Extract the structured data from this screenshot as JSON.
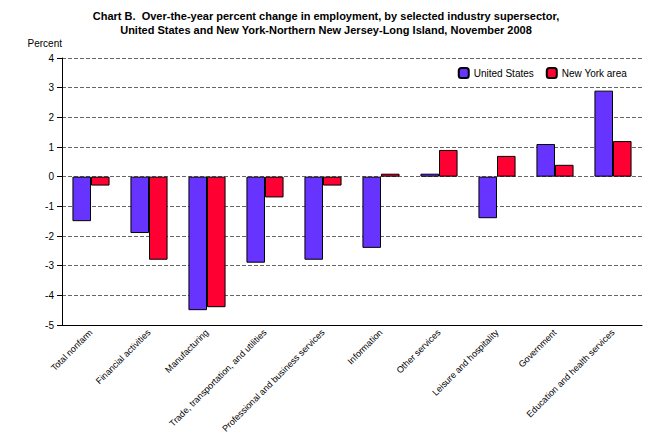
{
  "chart_data": {
    "type": "bar",
    "title": "Chart B.  Over-the-year percent change in employment, by selected industry supersector,\nUnited States and New York-Northern New Jersey-Long Island, November 2008",
    "y_label": "Percent",
    "categories": [
      "Total nonfarm",
      "Financial activities",
      "Manufacturing",
      "Trade, transportation, and utilities",
      "Professional and business services",
      "Information",
      "Other services",
      "Leisure and hospitality",
      "Government",
      "Education and health services"
    ],
    "series": [
      {
        "name": "United States",
        "color": "#6633ff",
        "values": [
          -1.5,
          -1.9,
          -4.5,
          -2.9,
          -2.8,
          -2.4,
          0.1,
          -1.4,
          1.1,
          2.9
        ]
      },
      {
        "name": "New York area",
        "color": "#ff0033",
        "values": [
          -0.3,
          -2.8,
          -4.4,
          -0.7,
          -0.3,
          0.1,
          0.9,
          0.7,
          0.4,
          1.2
        ]
      }
    ],
    "ylim": [
      -5,
      4
    ],
    "yticks": [
      -5,
      -4,
      -3,
      -2,
      -1,
      0,
      1,
      2,
      3,
      4
    ],
    "grid": true,
    "legend": "upper right"
  }
}
